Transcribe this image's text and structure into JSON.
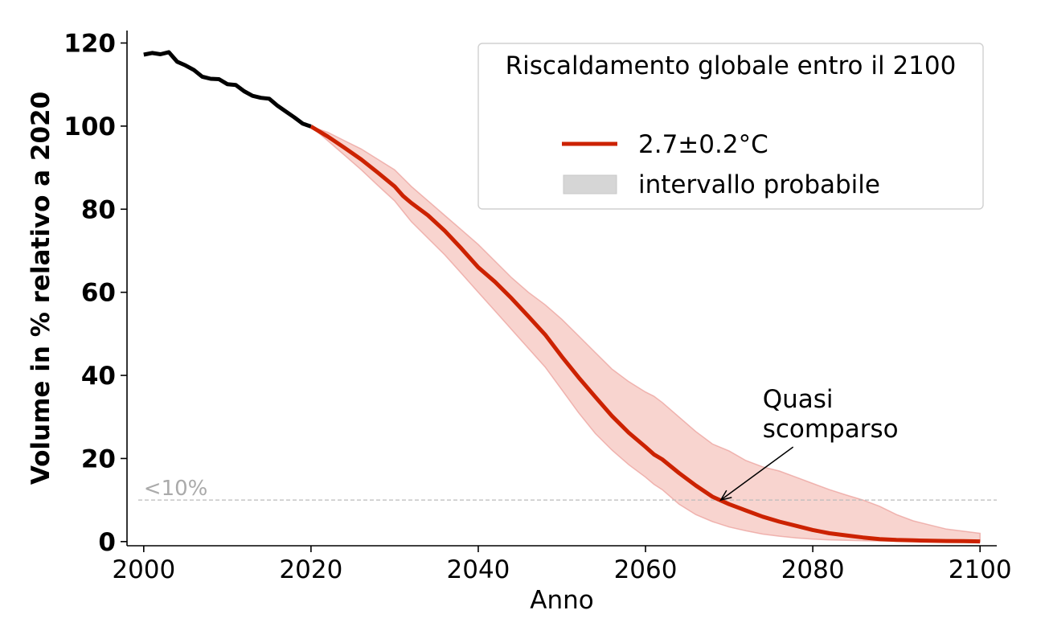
{
  "chart_data": {
    "type": "line",
    "title": "",
    "xlabel": "Anno",
    "ylabel": "Volume in % relativo a 2020",
    "xlim": [
      1998,
      2102
    ],
    "ylim": [
      -1,
      123
    ],
    "x_ticks": [
      2000,
      2020,
      2040,
      2060,
      2080,
      2100
    ],
    "y_ticks": [
      0,
      20,
      40,
      60,
      80,
      100,
      120
    ],
    "grid": false,
    "legend": {
      "title": "Riscaldamento globale entro il 2100",
      "position": "top-right",
      "entries": [
        {
          "label": "2.7±0.2°C",
          "kind": "line"
        },
        {
          "label": "intervallo probabile",
          "kind": "patch"
        }
      ]
    },
    "threshold": {
      "y": 10,
      "label": "<10%"
    },
    "annotation": {
      "lines": [
        "Quasi",
        "scomparso"
      ],
      "x": 2074,
      "y": 28,
      "arrow_to": [
        2069,
        10
      ]
    },
    "series": [
      {
        "name": "historical",
        "x": [
          2000,
          2001,
          2002,
          2003,
          2004,
          2005,
          2006,
          2007,
          2008,
          2009,
          2010,
          2011,
          2012,
          2013,
          2014,
          2015,
          2016,
          2017,
          2018,
          2019,
          2020
        ],
        "values": [
          117.2,
          117.6,
          117.3,
          117.8,
          115.5,
          114.6,
          113.5,
          111.9,
          111.4,
          111.3,
          110.1,
          109.9,
          108.4,
          107.3,
          106.8,
          106.6,
          104.9,
          103.5,
          102.1,
          100.6,
          99.9
        ]
      },
      {
        "name": "2.7±0.2°C",
        "x": [
          2020,
          2022,
          2024,
          2026,
          2028,
          2030,
          2031,
          2032,
          2034,
          2036,
          2038,
          2040,
          2042,
          2044,
          2046,
          2048,
          2050,
          2052,
          2054,
          2056,
          2058,
          2060,
          2061,
          2062,
          2064,
          2066,
          2068,
          2070,
          2072,
          2074,
          2076,
          2078,
          2080,
          2082,
          2084,
          2086,
          2088,
          2090,
          2092,
          2094,
          2096,
          2098,
          2100
        ],
        "values": [
          99.9,
          97.5,
          94.8,
          92.0,
          88.8,
          85.5,
          83.2,
          81.5,
          78.5,
          74.8,
          70.5,
          66.0,
          62.5,
          58.5,
          54.2,
          49.8,
          44.5,
          39.5,
          34.8,
          30.2,
          26.2,
          22.8,
          21.0,
          19.8,
          16.5,
          13.5,
          10.8,
          9.0,
          7.5,
          6.0,
          4.8,
          3.8,
          2.8,
          2.0,
          1.5,
          1.0,
          0.6,
          0.4,
          0.3,
          0.2,
          0.15,
          0.1,
          0.05
        ],
        "lower": [
          99.9,
          96.5,
          93.0,
          89.5,
          85.7,
          82.0,
          79.5,
          77.0,
          73.0,
          69.0,
          64.5,
          60.0,
          55.5,
          51.0,
          46.5,
          42.0,
          36.5,
          31.0,
          26.0,
          22.0,
          18.5,
          15.5,
          13.8,
          12.5,
          9.0,
          6.5,
          4.8,
          3.5,
          2.6,
          1.8,
          1.3,
          0.9,
          0.6,
          0.4,
          0.3,
          0.2,
          0.15,
          0.1,
          0.08,
          0.05,
          0.03,
          0.02,
          0.01
        ],
        "upper": [
          99.9,
          98.5,
          96.5,
          94.5,
          92.0,
          89.5,
          87.5,
          85.5,
          82.0,
          78.5,
          75.0,
          71.5,
          67.5,
          63.5,
          60.0,
          57.0,
          53.5,
          49.5,
          45.5,
          41.5,
          38.5,
          36.0,
          35.0,
          33.5,
          30.0,
          26.5,
          23.5,
          21.8,
          19.5,
          18.0,
          17.0,
          15.5,
          14.0,
          12.5,
          11.2,
          10.0,
          8.5,
          6.5,
          5.0,
          4.0,
          3.0,
          2.5,
          2.0
        ]
      }
    ],
    "colors": {
      "historical": "#000000",
      "projection": "#cc2200",
      "band_fill": "#f1a9a0",
      "band_edge": "#e8908a",
      "legend_patch": "#d6d6d6",
      "threshold": "#bbbbbb"
    }
  }
}
